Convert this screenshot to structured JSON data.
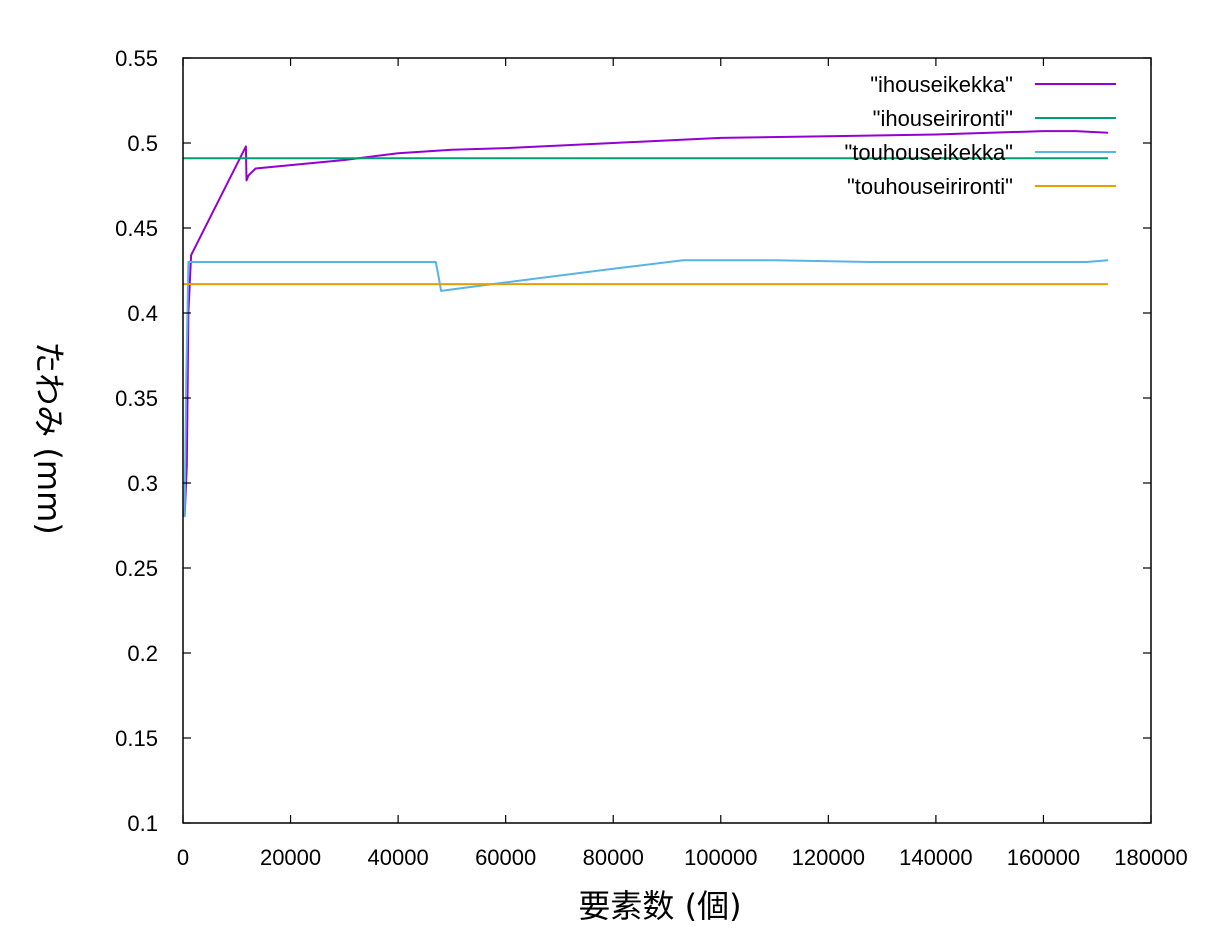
{
  "chart_data": {
    "type": "line",
    "xlabel": "要素数 (個)",
    "ylabel": "たわみ (mm)",
    "xlim": [
      0,
      180000
    ],
    "ylim": [
      0.1,
      0.55
    ],
    "xticks": [
      0,
      20000,
      40000,
      60000,
      80000,
      100000,
      120000,
      140000,
      160000,
      180000
    ],
    "xtick_labels": [
      "0",
      "20000",
      "40000",
      "60000",
      "80000",
      "100000",
      "120000",
      "140000",
      "160000",
      "180000"
    ],
    "yticks": [
      0.1,
      0.15,
      0.2,
      0.25,
      0.3,
      0.35,
      0.4,
      0.45,
      0.5,
      0.55
    ],
    "ytick_labels": [
      "0.1",
      "0.15",
      "0.2",
      "0.25",
      "0.3",
      "0.35",
      "0.4",
      "0.45",
      "0.5",
      "0.55"
    ],
    "grid": false,
    "legend_position": "top-right",
    "series": [
      {
        "name": "\"ihouseikekka\"",
        "color": "#9400d3",
        "x": [
          300,
          700,
          1000,
          1500,
          11700,
          11800,
          12200,
          13500,
          20000,
          30000,
          40000,
          50000,
          60000,
          80000,
          100000,
          120000,
          140000,
          160000,
          166000,
          172000
        ],
        "y": [
          0.28,
          0.31,
          0.4,
          0.434,
          0.498,
          0.478,
          0.481,
          0.485,
          0.487,
          0.49,
          0.494,
          0.496,
          0.497,
          0.5,
          0.503,
          0.504,
          0.505,
          0.507,
          0.507,
          0.506
        ]
      },
      {
        "name": "\"ihouseirironti\"",
        "color": "#009e73",
        "x": [
          0,
          172000
        ],
        "y": [
          0.491,
          0.491
        ]
      },
      {
        "name": "\"touhouseikekka\"",
        "color": "#56b4e9",
        "x": [
          300,
          600,
          1000,
          47000,
          47500,
          48000,
          60000,
          80000,
          93000,
          110000,
          128000,
          168000,
          172000
        ],
        "y": [
          0.28,
          0.36,
          0.43,
          0.43,
          0.422,
          0.413,
          0.418,
          0.426,
          0.431,
          0.431,
          0.43,
          0.43,
          0.431
        ]
      },
      {
        "name": "\"touhouseirironti\"",
        "color": "#e69f00",
        "x": [
          0,
          172000
        ],
        "y": [
          0.417,
          0.417
        ]
      }
    ]
  }
}
